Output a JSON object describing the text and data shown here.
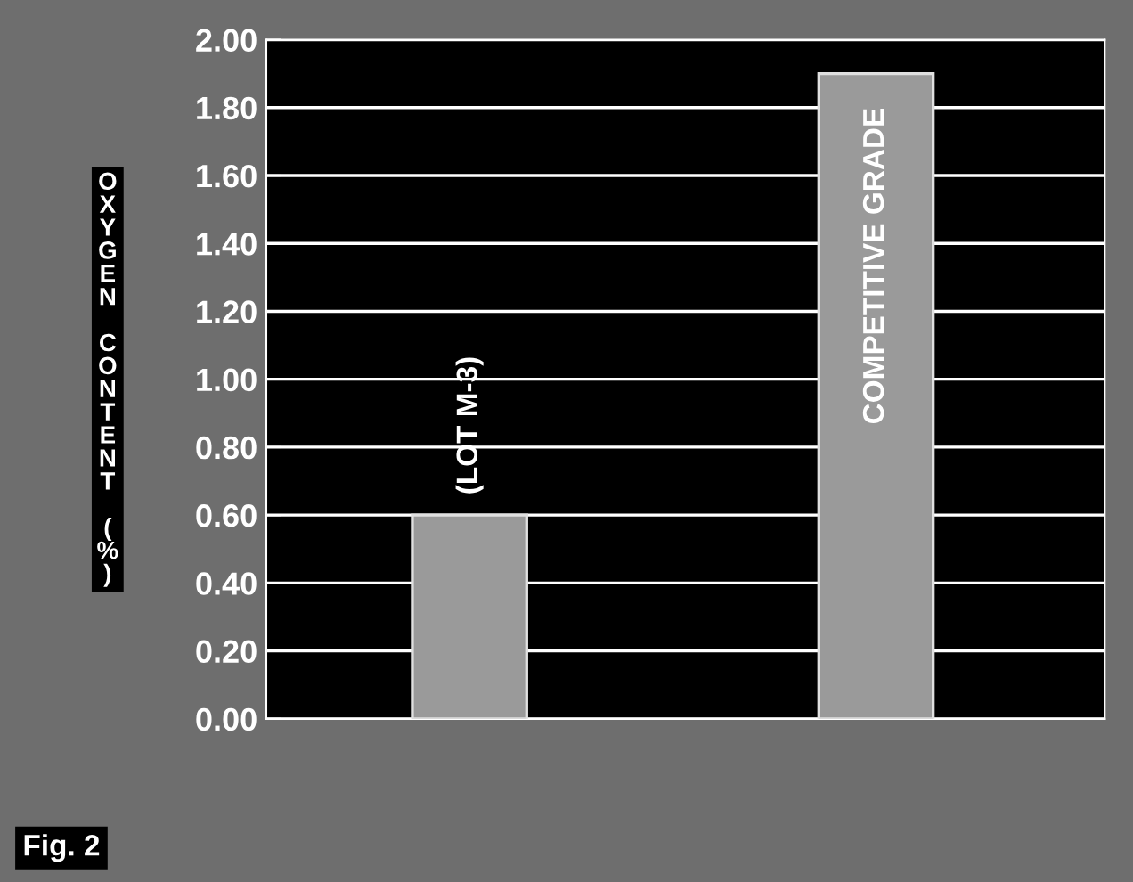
{
  "chart_data": {
    "type": "bar",
    "ylabel": "OXYGEN CONTENT (%)",
    "categories": [
      "(LOT M-3)",
      "COMPETITIVE GRADE"
    ],
    "values": [
      0.6,
      1.9
    ],
    "color": "#9a9a9a",
    "ylim": [
      0,
      2
    ],
    "yticks": [
      {
        "value": 0,
        "label": "0.00"
      },
      {
        "value": 0.2,
        "label": "0.20"
      },
      {
        "value": 0.4,
        "label": "0.40"
      },
      {
        "value": 0.6,
        "label": "0.60"
      },
      {
        "value": 0.8,
        "label": "0.80"
      },
      {
        "value": 1.0,
        "label": "1.00"
      },
      {
        "value": 1.2,
        "label": "1.20"
      },
      {
        "value": 1.4,
        "label": "1.40"
      },
      {
        "value": 1.6,
        "label": "1.60"
      },
      {
        "value": 1.8,
        "label": "1.80"
      },
      {
        "value": 2.0,
        "label": "2.00"
      }
    ],
    "grid": "y",
    "annotations": [
      "Fig. 2"
    ]
  }
}
